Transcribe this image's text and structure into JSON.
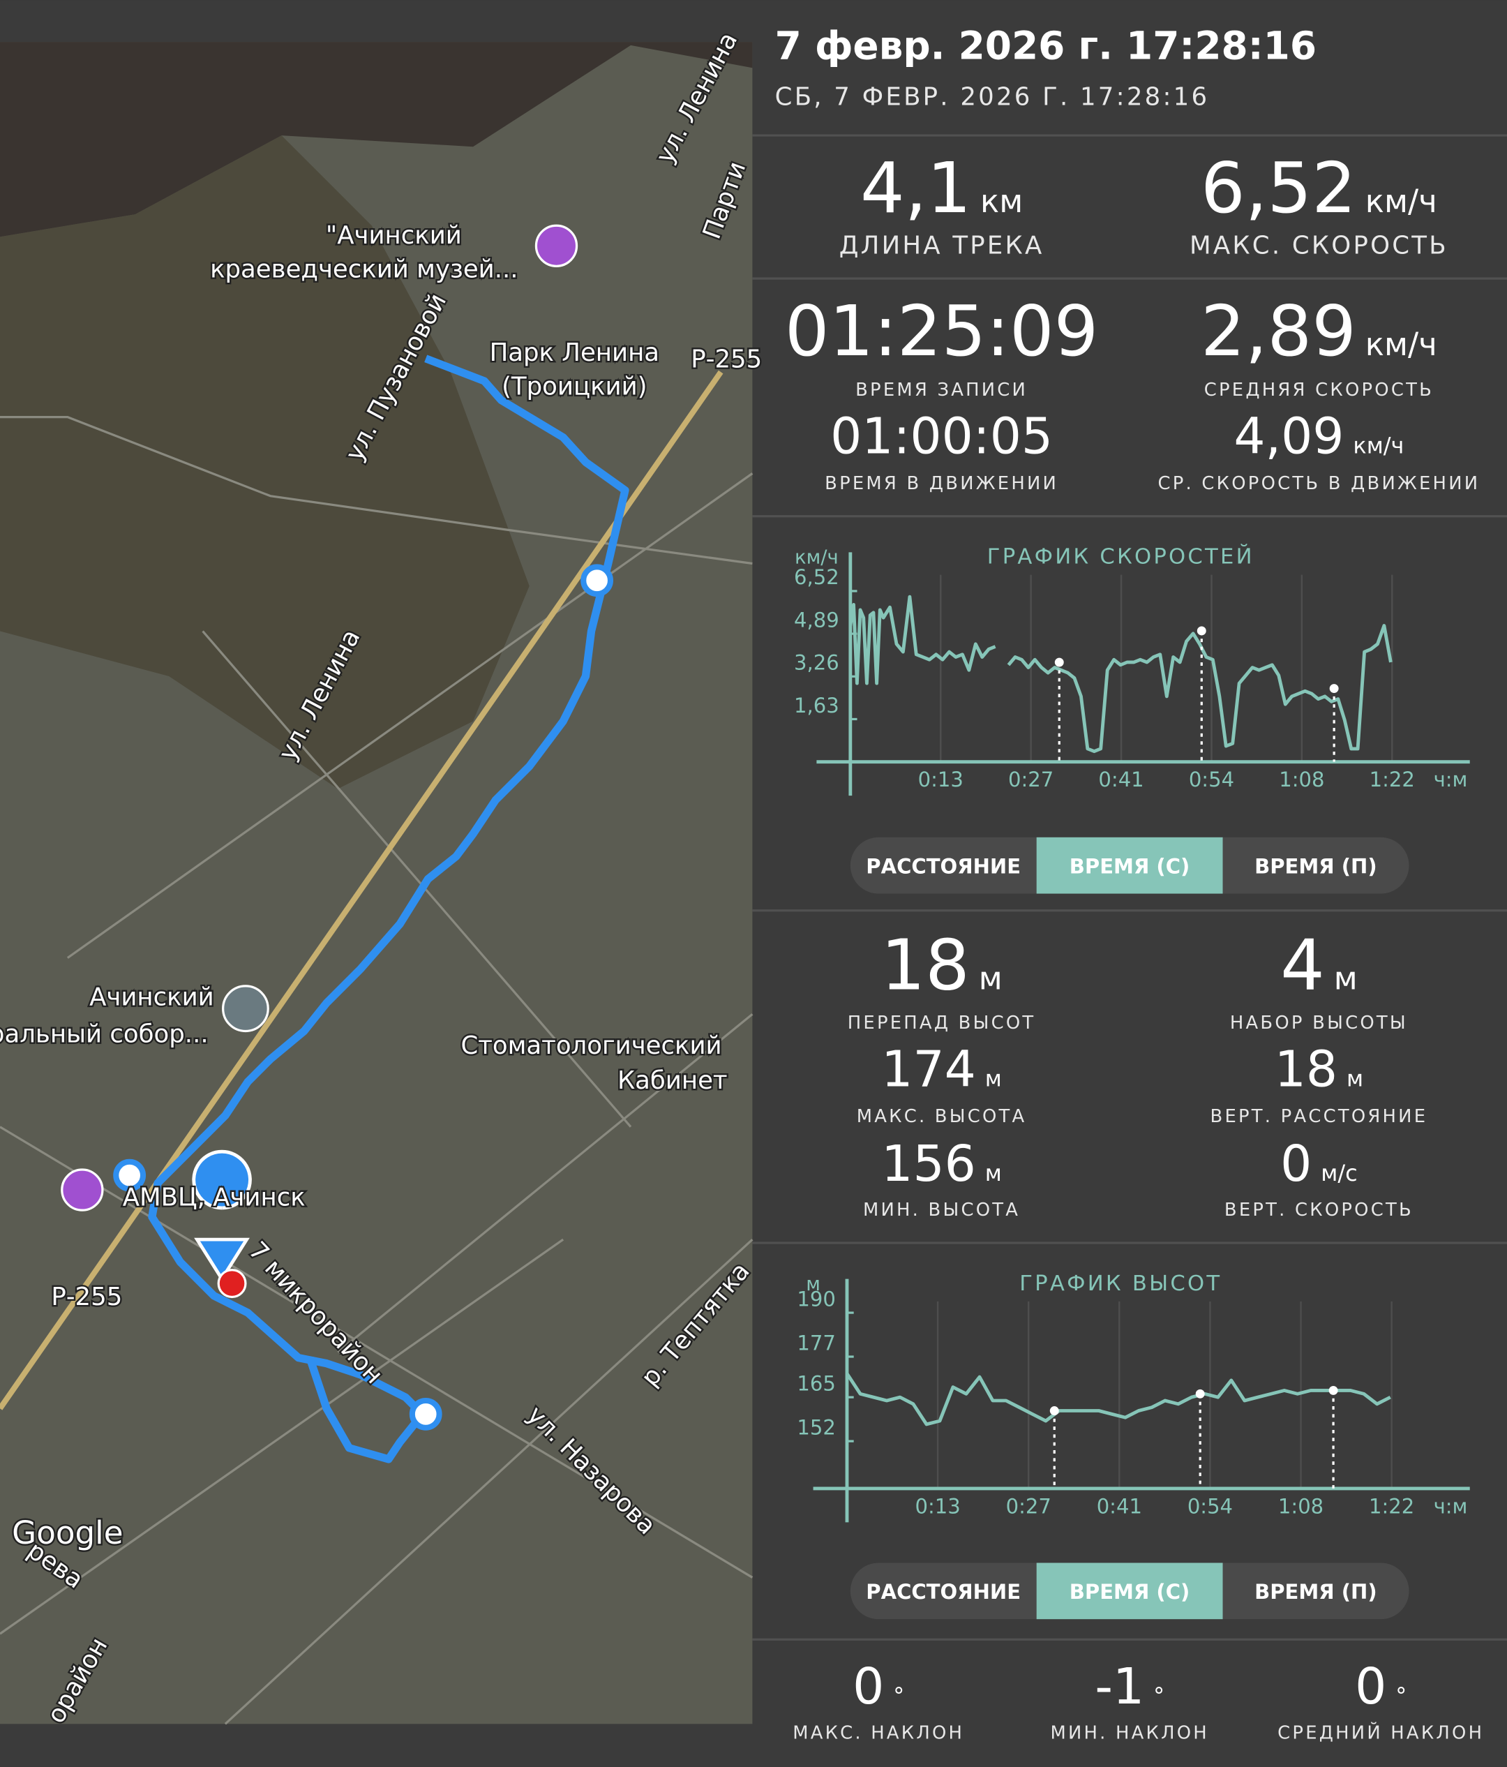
{
  "header": {
    "title": "7 февр. 2026 г. 17:28:16",
    "subtitle": "СБ, 7 ФЕВР. 2026 Г. 17:28:16"
  },
  "map": {
    "labels": [
      "\"Ачинский",
      "краеведческий музей...",
      "Парк Ленина",
      "(Троицкий)",
      "ул. Ленина",
      "Парти",
      "Р-255",
      "ул. Пузановой",
      "ул. Ленина",
      "Ачинский",
      "ральный собор...",
      "Стоматологический",
      "Кабинет",
      "АМВЦ, Ачинск",
      "Р-255",
      "7 микрорайон",
      "р. Тептятка",
      "ул. Назарова",
      "Google",
      "рева",
      "орайон"
    ]
  },
  "track_stats": [
    {
      "value": "4,1",
      "unit": "км",
      "label": "ДЛИНА ТРЕКА"
    },
    {
      "value": "6,52",
      "unit": "км/ч",
      "label": "МАКС. СКОРОСТЬ"
    },
    {
      "value": "01:25:09",
      "label": "ВРЕМЯ ЗАПИСИ"
    },
    {
      "value": "2,89",
      "unit": "км/ч",
      "label": "СРЕДНЯЯ СКОРОСТЬ"
    },
    {
      "value": "01:00:05",
      "label": "ВРЕМЯ В ДВИЖЕНИИ"
    },
    {
      "value": "4,09",
      "unit": "км/ч",
      "label": "СР. СКОРОСТЬ В ДВИЖЕНИИ"
    }
  ],
  "elevation_stats": [
    {
      "value": "18",
      "unit": "м",
      "label": "ПЕРЕПАД ВЫСОТ"
    },
    {
      "value": "4",
      "unit": "м",
      "label": "НАБОР ВЫСОТЫ"
    },
    {
      "value": "174",
      "unit": "м",
      "label": "МАКС. ВЫСОТА"
    },
    {
      "value": "18",
      "unit": "м",
      "label": "ВЕРТ. РАССТОЯНИЕ"
    },
    {
      "value": "156",
      "unit": "м",
      "label": "МИН. ВЫСОТА"
    },
    {
      "value": "0",
      "unit": "м/с",
      "label": "ВЕРТ. СКОРОСТЬ"
    }
  ],
  "tabs": {
    "items": [
      "РАССТОЯНИЕ",
      "ВРЕМЯ (С)",
      "ВРЕМЯ (П)"
    ],
    "active": 1
  },
  "slopes": [
    {
      "value": "0",
      "unit": "°",
      "label": "МАКС. НАКЛОН"
    },
    {
      "value": "-1",
      "unit": "°",
      "label": "МИН. НАКЛОН"
    },
    {
      "value": "0",
      "unit": "°",
      "label": "СРЕДНИЙ НАКЛОН"
    }
  ],
  "chart_data": [
    {
      "type": "line",
      "title": "ГРАФИК СКОРОСТЕЙ",
      "y_unit": "км/ч",
      "x_unit": "ч:м",
      "color": "#86c5b8",
      "x": [
        0,
        0.5,
        1,
        1.5,
        2,
        2.5,
        3,
        3.5,
        4,
        4.5,
        5,
        6,
        7,
        8,
        9,
        10,
        11,
        12,
        13,
        14,
        15,
        16,
        17,
        18,
        19,
        20,
        21,
        22,
        22.5,
        24,
        25,
        26,
        27,
        28,
        29,
        30,
        31,
        32,
        33,
        34,
        35,
        36,
        37,
        38,
        39,
        40,
        41,
        42,
        43,
        44,
        45,
        46,
        47,
        48,
        49,
        50,
        51,
        52,
        53,
        54,
        55,
        56,
        57,
        58,
        59,
        60,
        61,
        62,
        63,
        64,
        65,
        66,
        67,
        68,
        69,
        70,
        71,
        72,
        73,
        74,
        75,
        76,
        77,
        78,
        79,
        80,
        81,
        82
      ],
      "series": [
        {
          "values": [
            5.2,
            6.0,
            3.0,
            5.8,
            5.5,
            3.0,
            5.6,
            5.7,
            3.0,
            5.8,
            5.5,
            5.9,
            4.5,
            4.2,
            6.3,
            4.1,
            4.0,
            3.9,
            4.1,
            3.9,
            4.2,
            4.0,
            4.1,
            3.5,
            4.5,
            4.0,
            4.3,
            4.4,
            null,
            3.7,
            4.0,
            3.9,
            3.6,
            3.9,
            3.6,
            3.4,
            3.6,
            3.5,
            3.4,
            3.2,
            2.5,
            0.5,
            0.4,
            0.5,
            3.5,
            3.9,
            3.7,
            3.8,
            3.8,
            3.9,
            3.8,
            4.0,
            4.1,
            2.5,
            4.0,
            3.8,
            4.6,
            4.9,
            4.5,
            4.0,
            3.9,
            2.5,
            0.6,
            0.7,
            3.0,
            3.3,
            3.6,
            3.5,
            3.6,
            3.7,
            3.3,
            2.2,
            2.5,
            2.6,
            2.7,
            2.6,
            2.4,
            2.5,
            2.3,
            2.4,
            1.6,
            0.5,
            0.5,
            4.2,
            4.3,
            4.5,
            5.2,
            3.8
          ]
        }
      ],
      "markers": {
        "x": [
          31.7,
          53.3,
          73.4
        ],
        "values": [
          3.8,
          5.0,
          2.8
        ]
      },
      "xlim": [
        0,
        94
      ],
      "xticks": [
        {
          "value": 13.7,
          "label": "0:13"
        },
        {
          "value": 27.4,
          "label": "0:27"
        },
        {
          "value": 41.1,
          "label": "0:41"
        },
        {
          "value": 54.8,
          "label": "0:54"
        },
        {
          "value": 68.5,
          "label": "1:08"
        },
        {
          "value": 82.2,
          "label": "1:22"
        }
      ],
      "ylim": [
        0,
        8
      ],
      "yticks": [
        {
          "value": 1.63,
          "label": "1,63"
        },
        {
          "value": 3.26,
          "label": "3,26"
        },
        {
          "value": 4.89,
          "label": "4,89"
        },
        {
          "value": 6.52,
          "label": "6,52"
        }
      ]
    },
    {
      "type": "line",
      "title": "ГРАФИК ВЫСОТ",
      "y_unit": "м",
      "x_unit": "ч:м",
      "color": "#86c5b8",
      "x": [
        0,
        2,
        4,
        6,
        8,
        10,
        12,
        14,
        16,
        18,
        20,
        22,
        24,
        26,
        28,
        30,
        32,
        34,
        36,
        38,
        40,
        42,
        44,
        46,
        48,
        50,
        52,
        54,
        56,
        58,
        60,
        62,
        64,
        66,
        68,
        70,
        72,
        74,
        76,
        78,
        80,
        82
      ],
      "series": [
        {
          "values": [
            172,
            166,
            165,
            164,
            165,
            163,
            157,
            158,
            168,
            166,
            171,
            164,
            164,
            162,
            160,
            158,
            161,
            161,
            161,
            161,
            160,
            159,
            161,
            162,
            164,
            163,
            165,
            166,
            165,
            170,
            164,
            165,
            166,
            167,
            166,
            167,
            167,
            167,
            167,
            166,
            163,
            165
          ]
        }
      ],
      "markers": {
        "x": [
          31.3,
          53.3,
          73.4
        ],
        "values": [
          161,
          166,
          167
        ]
      },
      "xlim": [
        0,
        94
      ],
      "xticks": [
        {
          "value": 13.7,
          "label": "0:13"
        },
        {
          "value": 27.4,
          "label": "0:27"
        },
        {
          "value": 41.1,
          "label": "0:41"
        },
        {
          "value": 54.8,
          "label": "0:54"
        },
        {
          "value": 68.5,
          "label": "1:08"
        },
        {
          "value": 82.2,
          "label": "1:22"
        }
      ],
      "ylim": [
        138,
        200
      ],
      "yticks": [
        152,
        165,
        177,
        190
      ]
    }
  ]
}
